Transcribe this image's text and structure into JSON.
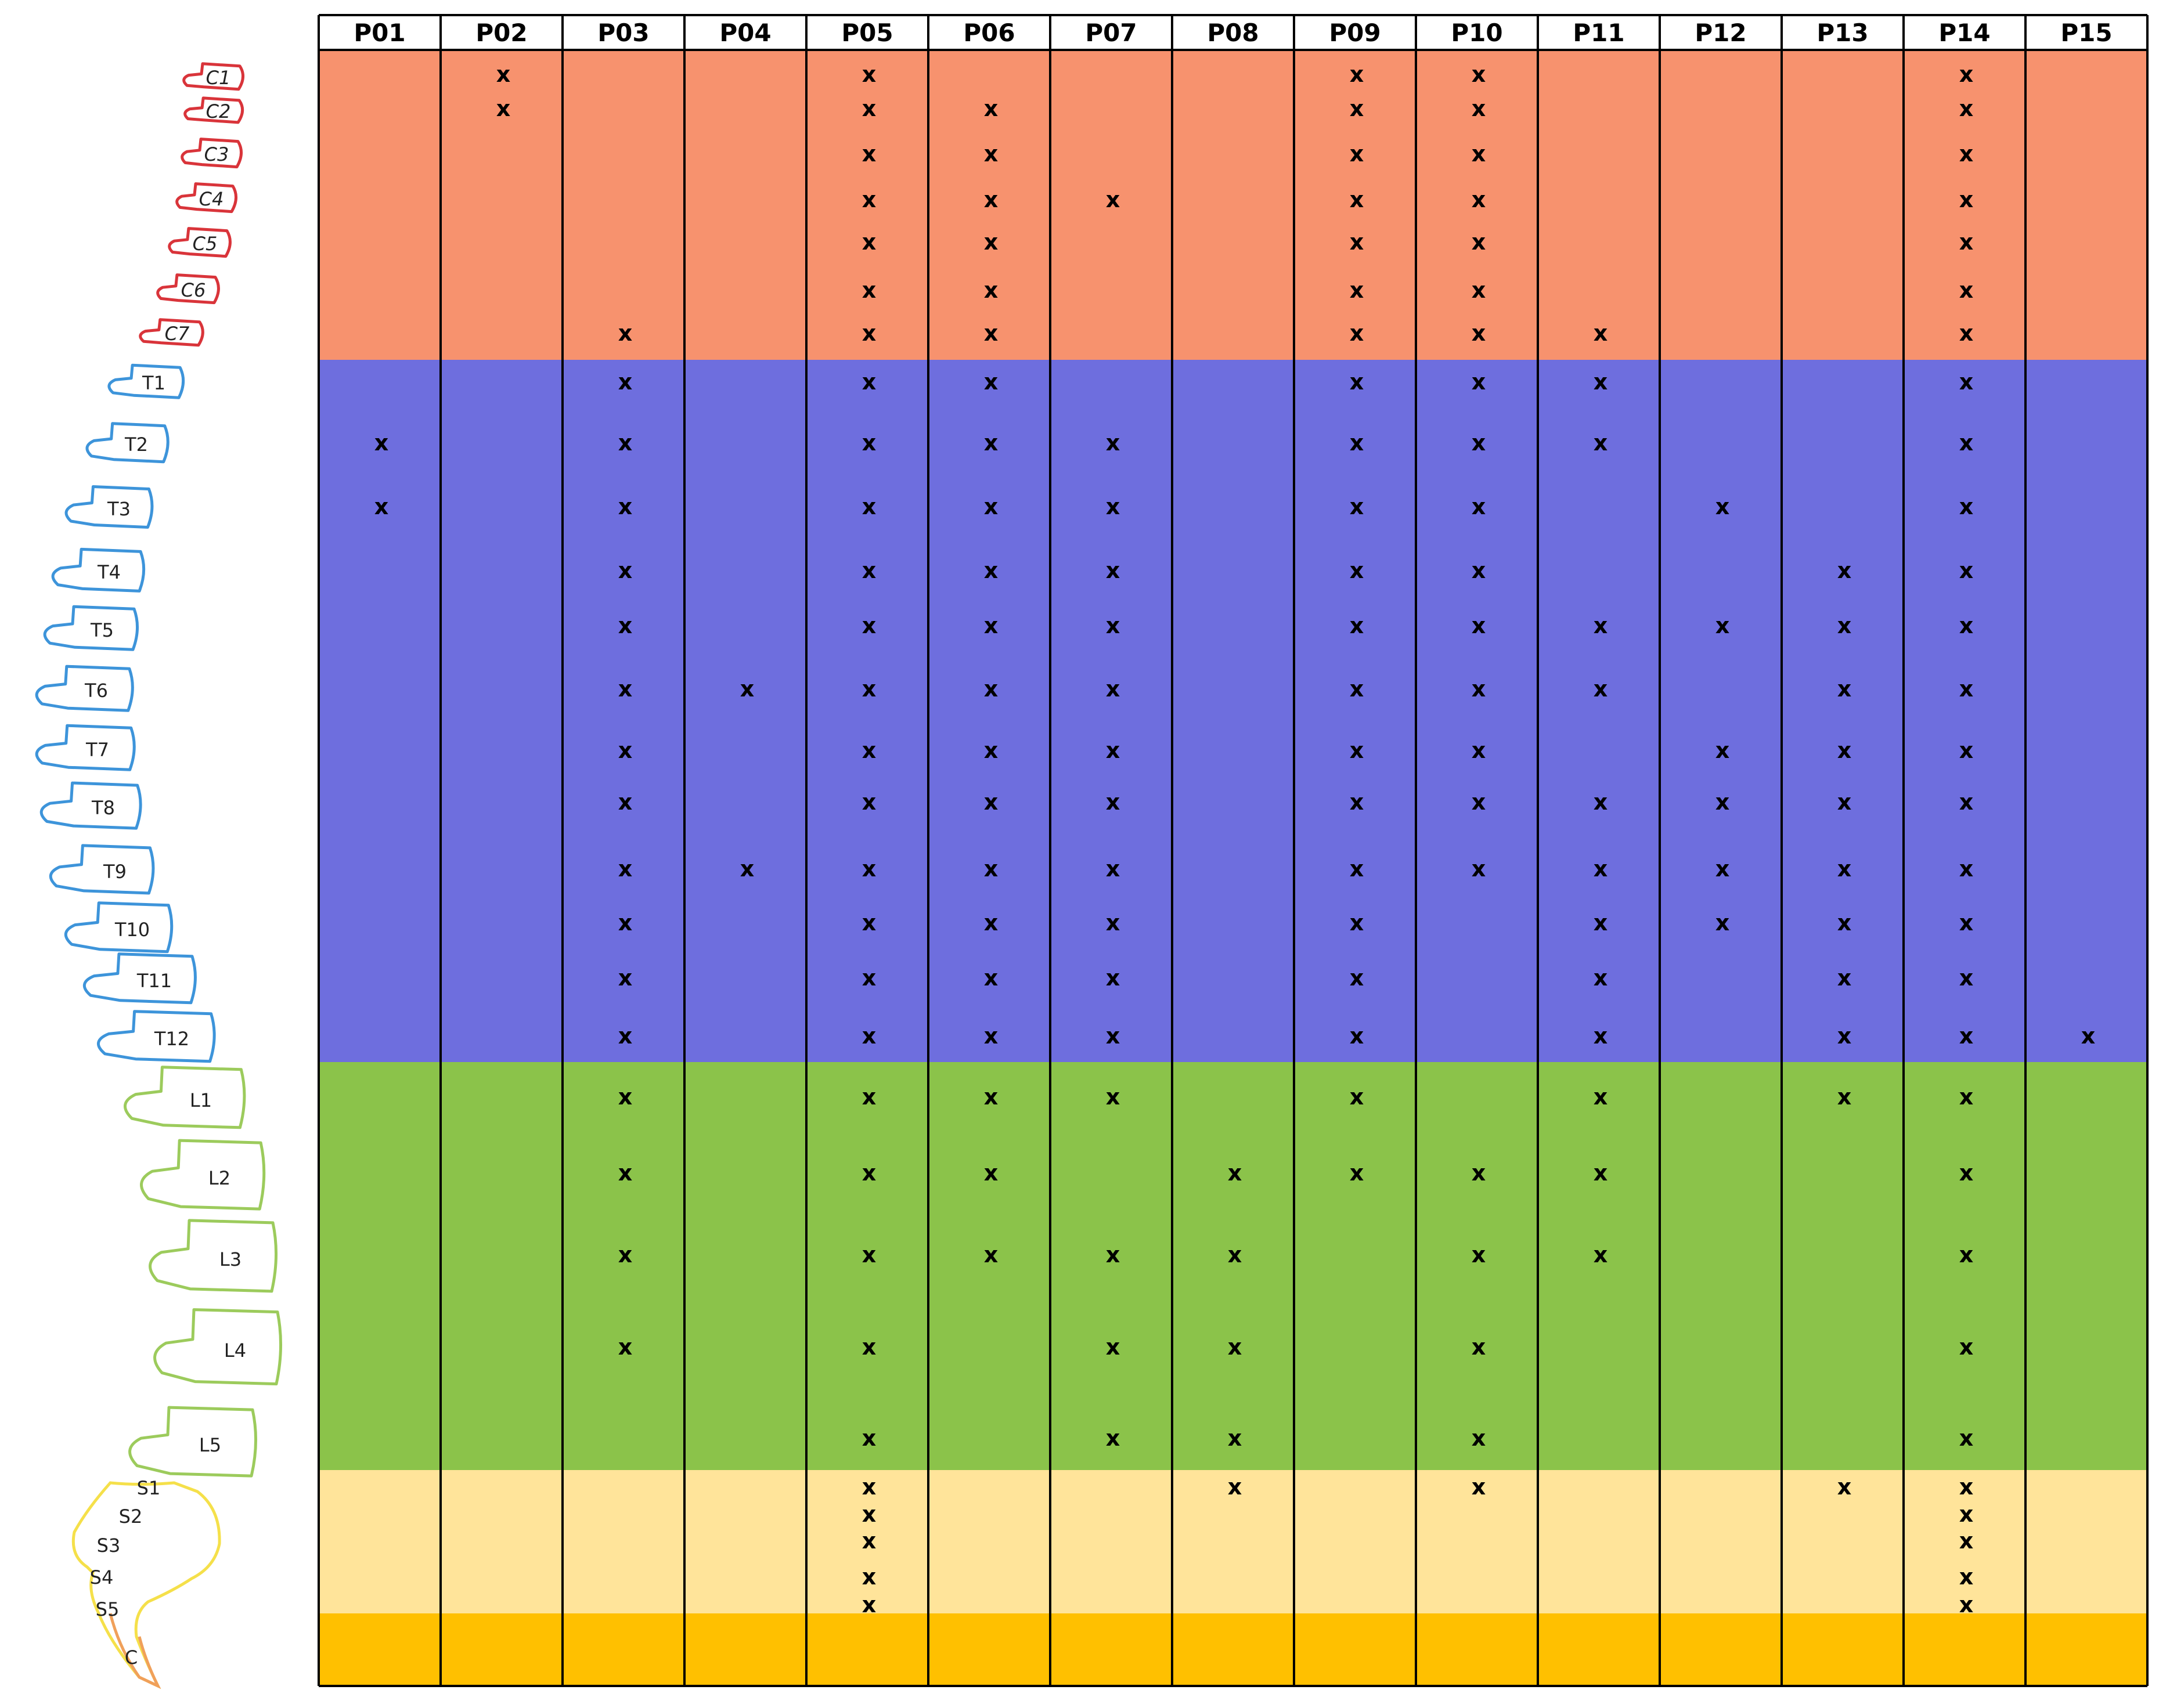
{
  "participants": [
    "P01",
    "P02",
    "P03",
    "P04",
    "P05",
    "P06",
    "P07",
    "P08",
    "P09",
    "P10",
    "P11",
    "P12",
    "P13",
    "P14",
    "P15"
  ],
  "colors": {
    "cervical": "#F7926E",
    "thoracic": "#6E6EDE",
    "lumbar": "#8BC34A",
    "sacral": "#FFE49A",
    "coccyx": "#FFC000",
    "outline_cervical": "#D9343A",
    "outline_thoracic": "#3D94DA",
    "outline_lumbar": "#9CCB5C",
    "outline_sacral": "#F5E04A",
    "outline_coccyx": "#F0A05A",
    "grid": "#000000",
    "mark": "#000000",
    "vertebra_label": "#222222"
  },
  "mark_symbol": "x",
  "regions": [
    {
      "name": "cervical",
      "rows": [
        {
          "label": "C1",
          "marks": [
            "P02",
            "P05",
            "P09",
            "P10",
            "P14"
          ]
        },
        {
          "label": "C2",
          "marks": [
            "P02",
            "P05",
            "P06",
            "P09",
            "P10",
            "P14"
          ]
        },
        {
          "label": "C3",
          "marks": [
            "P05",
            "P06",
            "P09",
            "P10",
            "P14"
          ]
        },
        {
          "label": "C4",
          "marks": [
            "P05",
            "P06",
            "P07",
            "P09",
            "P10",
            "P14"
          ]
        },
        {
          "label": "C5",
          "marks": [
            "P05",
            "P06",
            "P09",
            "P10",
            "P14"
          ]
        },
        {
          "label": "C6",
          "marks": [
            "P05",
            "P06",
            "P09",
            "P10",
            "P14"
          ]
        },
        {
          "label": "C7",
          "marks": [
            "P03",
            "P05",
            "P06",
            "P09",
            "P10",
            "P11",
            "P14"
          ]
        }
      ]
    },
    {
      "name": "thoracic",
      "rows": [
        {
          "label": "T1",
          "marks": [
            "P03",
            "P05",
            "P06",
            "P09",
            "P10",
            "P11",
            "P14"
          ]
        },
        {
          "label": "T2",
          "marks": [
            "P01",
            "P03",
            "P05",
            "P06",
            "P07",
            "P09",
            "P10",
            "P11",
            "P14"
          ]
        },
        {
          "label": "T3",
          "marks": [
            "P01",
            "P03",
            "P05",
            "P06",
            "P07",
            "P09",
            "P10",
            "P12",
            "P14"
          ]
        },
        {
          "label": "T4",
          "marks": [
            "P03",
            "P05",
            "P06",
            "P07",
            "P09",
            "P10",
            "P13",
            "P14"
          ]
        },
        {
          "label": "T5",
          "marks": [
            "P03",
            "P05",
            "P06",
            "P07",
            "P09",
            "P10",
            "P11",
            "P12",
            "P13",
            "P14"
          ]
        },
        {
          "label": "T6",
          "marks": [
            "P03",
            "P04",
            "P05",
            "P06",
            "P07",
            "P09",
            "P10",
            "P11",
            "P13",
            "P14"
          ]
        },
        {
          "label": "T7",
          "marks": [
            "P03",
            "P05",
            "P06",
            "P07",
            "P09",
            "P10",
            "P12",
            "P13",
            "P14"
          ]
        },
        {
          "label": "T8",
          "marks": [
            "P03",
            "P05",
            "P06",
            "P07",
            "P09",
            "P10",
            "P11",
            "P12",
            "P13",
            "P14"
          ]
        },
        {
          "label": "T9",
          "marks": [
            "P03",
            "P04",
            "P05",
            "P06",
            "P07",
            "P09",
            "P10",
            "P11",
            "P12",
            "P13",
            "P14"
          ]
        },
        {
          "label": "T10",
          "marks": [
            "P03",
            "P05",
            "P06",
            "P07",
            "P09",
            "P11",
            "P12",
            "P13",
            "P14"
          ]
        },
        {
          "label": "T11",
          "marks": [
            "P03",
            "P05",
            "P06",
            "P07",
            "P09",
            "P11",
            "P13",
            "P14"
          ]
        },
        {
          "label": "T12",
          "marks": [
            "P03",
            "P05",
            "P06",
            "P07",
            "P09",
            "P11",
            "P13",
            "P14",
            "P15"
          ]
        }
      ]
    },
    {
      "name": "lumbar",
      "rows": [
        {
          "label": "L1",
          "marks": [
            "P03",
            "P05",
            "P06",
            "P07",
            "P09",
            "P11",
            "P13",
            "P14"
          ]
        },
        {
          "label": "L2",
          "marks": [
            "P03",
            "P05",
            "P06",
            "P08",
            "P09",
            "P10",
            "P11",
            "P14"
          ]
        },
        {
          "label": "L3",
          "marks": [
            "P03",
            "P05",
            "P06",
            "P07",
            "P08",
            "P10",
            "P11",
            "P14"
          ]
        },
        {
          "label": "L4",
          "marks": [
            "P03",
            "P05",
            "P07",
            "P08",
            "P10",
            "P14"
          ]
        },
        {
          "label": "L5",
          "marks": [
            "P05",
            "P07",
            "P08",
            "P10",
            "P14"
          ]
        }
      ]
    },
    {
      "name": "sacral",
      "rows": [
        {
          "label": "S1",
          "marks": [
            "P05",
            "P08",
            "P10",
            "P13",
            "P14"
          ]
        },
        {
          "label": "S2",
          "marks": [
            "P05",
            "P14"
          ]
        },
        {
          "label": "S3",
          "marks": [
            "P05",
            "P14"
          ]
        },
        {
          "label": "S4",
          "marks": [
            "P05",
            "P14"
          ]
        },
        {
          "label": "S5",
          "marks": [
            "P05",
            "P14"
          ]
        }
      ]
    },
    {
      "name": "coccyx",
      "rows": [
        {
          "label": "C",
          "marks": []
        }
      ]
    }
  ]
}
